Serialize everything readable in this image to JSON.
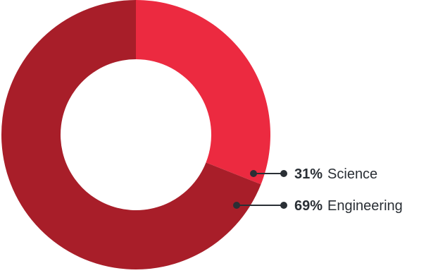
{
  "chart_data": {
    "type": "pie",
    "donut": true,
    "categories": [
      "Science",
      "Engineering"
    ],
    "values": [
      31,
      69
    ],
    "value_labels": [
      "31%",
      "69%"
    ],
    "colors": [
      "#ec2a40",
      "#a81e29"
    ],
    "legend": "callout-right"
  },
  "colors": {
    "leader_line": "#2a2f35",
    "label_text": "#2a2f35",
    "background": "#ffffff"
  }
}
